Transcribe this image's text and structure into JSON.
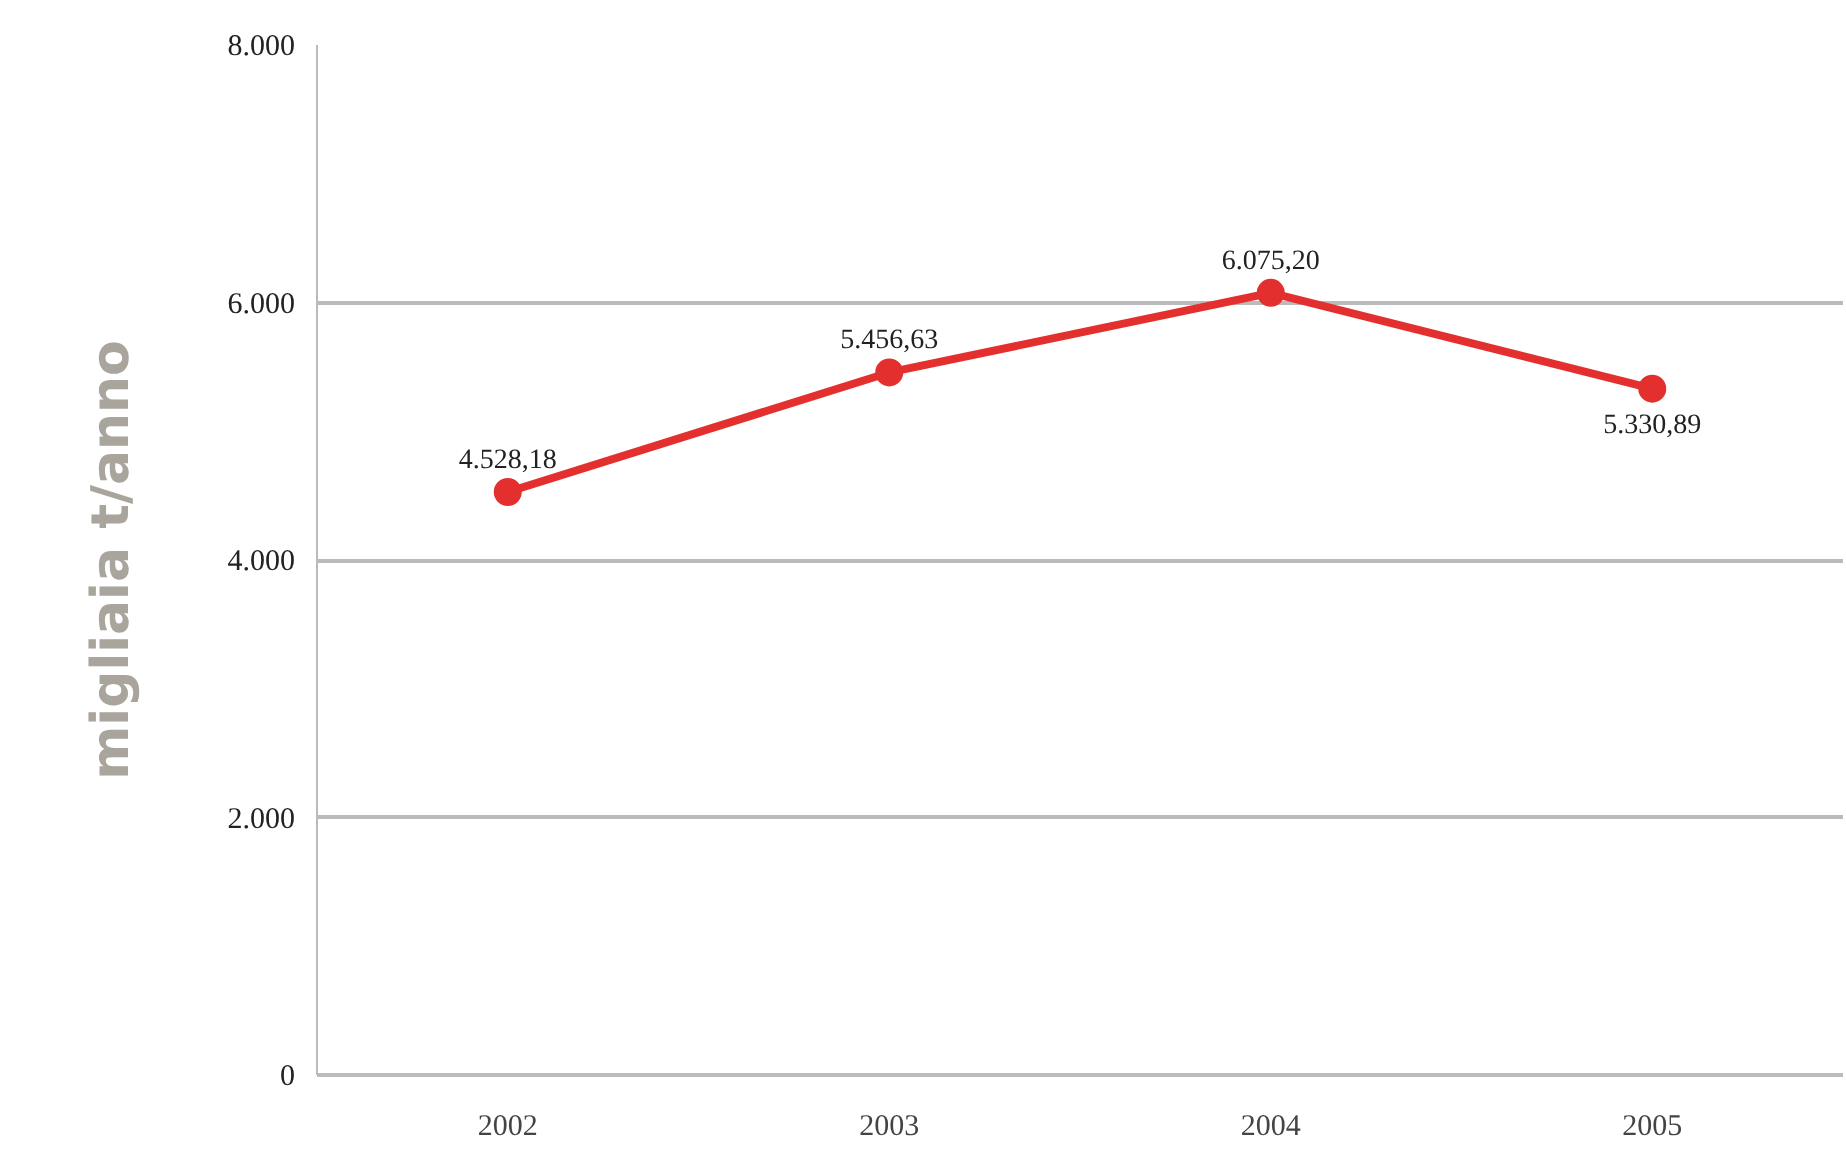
{
  "chart_data": {
    "type": "line",
    "ylabel": "migliaia t/anno",
    "categories": [
      "2002",
      "2003",
      "2004",
      "2005"
    ],
    "series": [
      {
        "color": "#e3302f",
        "values": [
          4528.18,
          5456.63,
          6075.2,
          5330.89
        ],
        "value_labels": [
          "4.528,18",
          "5.456,63",
          "6.075,20",
          "5.330,89"
        ]
      }
    ],
    "ylim": [
      0,
      8000
    ],
    "yticks": [
      {
        "value": 0,
        "label": "0"
      },
      {
        "value": 2000,
        "label": "2.000"
      },
      {
        "value": 4000,
        "label": "4.000"
      },
      {
        "value": 6000,
        "label": "6.000"
      },
      {
        "value": 8000,
        "label": "8.000"
      }
    ],
    "grid": "y",
    "marker": "circle",
    "line_style": "solid"
  }
}
